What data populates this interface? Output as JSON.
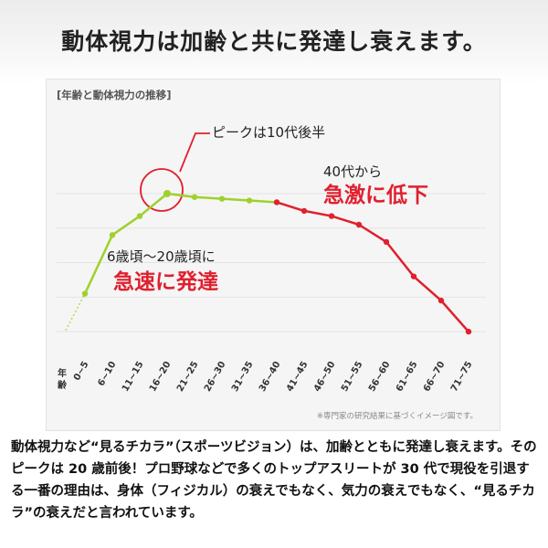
{
  "headline": "動体視力は加齢と共に発達し衰えます。",
  "caption": "動体視力など“見るチカラ”（スポーツビジョン）は、加齢とともに発達し衰えます。そのピークは 20 歳前後！プロ野球などで多くのトップアスリートが 30 代で現役を引退する一番の理由は、身体（フィジカル）の衰えでもなく、気力の衰えでもなく、“見るチカラ”の衰えだと言われています。",
  "colors": {
    "rising": "#9fd12b",
    "falling": "#e0202e",
    "accent_red": "#e0202e",
    "panel": "#f5f5f5"
  },
  "chart_data": {
    "type": "line",
    "title": "[年齢と動体視力の推移]",
    "xlabel": "年齢",
    "ylabel": "",
    "categories": [
      "0~5",
      "6~10",
      "11~15",
      "16~20",
      "21~25",
      "26~30",
      "31~35",
      "36~40",
      "41~45",
      "46~50",
      "51~55",
      "56~60",
      "61~65",
      "66~70",
      "71~75"
    ],
    "values": [
      0.22,
      0.56,
      0.67,
      0.8,
      0.78,
      0.77,
      0.76,
      0.75,
      0.7,
      0.67,
      0.62,
      0.52,
      0.32,
      0.18,
      0.0
    ],
    "ylim": [
      -0.1,
      1.0
    ],
    "grid": true,
    "peak_index": 3,
    "falling_from_index": 7,
    "annotations": {
      "peak": "ピークは10代後半",
      "rise_line1": "6歳頃〜20歳頃に",
      "rise_line2": "急速に発達",
      "fall_line1": "40代から",
      "fall_line2": "急激に低下"
    },
    "footnote": "※専門家の研究結果に基づくイメージ図です。"
  }
}
